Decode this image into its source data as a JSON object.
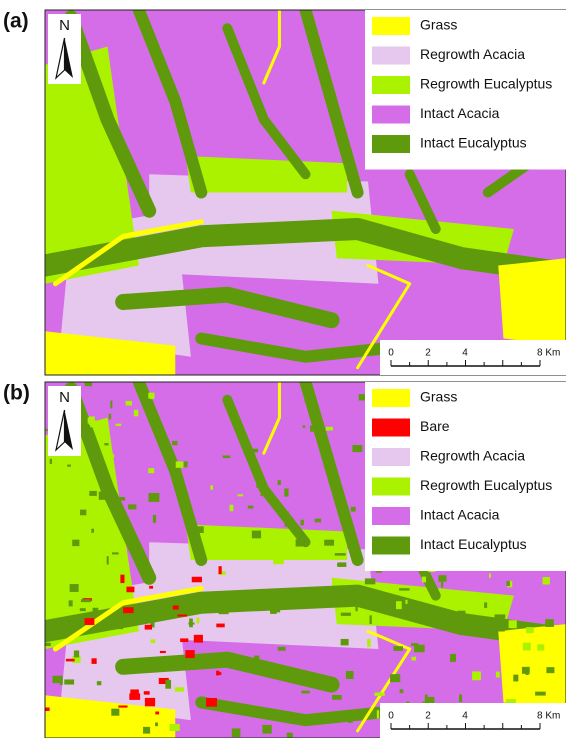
{
  "panels": [
    {
      "label": "(a)",
      "north": "N",
      "legend": [
        {
          "name": "Grass",
          "color": "#ffff00"
        },
        {
          "name": "Regrowth Acacia",
          "color": "#e6c8ee"
        },
        {
          "name": "Regrowth Eucalyptus",
          "color": "#aaf200"
        },
        {
          "name": "Intact Acacia",
          "color": "#d56de8"
        },
        {
          "name": "Intact Eucalyptus",
          "color": "#5f9a0c"
        }
      ],
      "scale_bar": [
        "0",
        "2",
        "4",
        "8 Km"
      ]
    },
    {
      "label": "(b)",
      "north": "N",
      "legend": [
        {
          "name": "Grass",
          "color": "#ffff00"
        },
        {
          "name": "Bare",
          "color": "#ff0000"
        },
        {
          "name": "Regrowth Acacia",
          "color": "#e6c8ee"
        },
        {
          "name": "Regrowth Eucalyptus",
          "color": "#aaf200"
        },
        {
          "name": "Intact Acacia",
          "color": "#d56de8"
        },
        {
          "name": "Intact Eucalyptus",
          "color": "#5f9a0c"
        }
      ],
      "scale_bar": [
        "0",
        "2",
        "4",
        "8 Km"
      ]
    }
  ]
}
